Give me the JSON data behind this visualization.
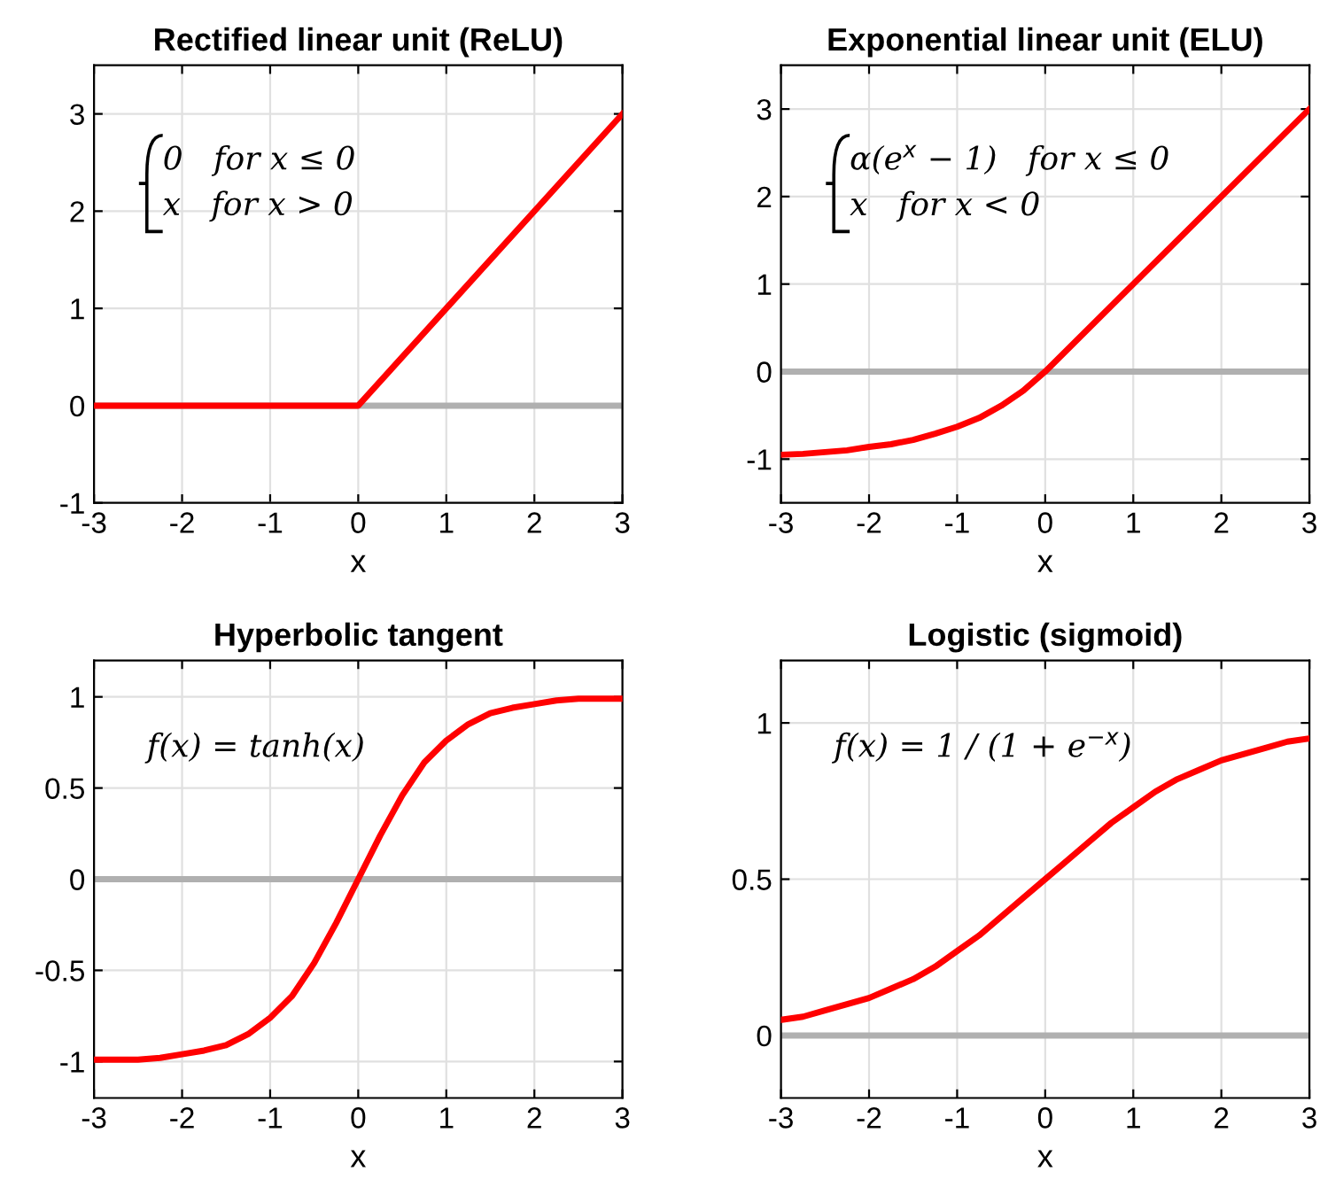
{
  "chart_data": [
    {
      "type": "line",
      "title": "Rectified linear unit (ReLU)",
      "xlabel": "x",
      "xlim": [
        -3,
        3
      ],
      "xticks": [
        -3,
        -2,
        -1,
        0,
        1,
        2,
        3
      ],
      "ylim": [
        -1,
        3.5
      ],
      "yticks": [
        -1,
        0,
        1,
        2,
        3
      ],
      "grid": true,
      "annotations": [
        "0   for x ≤ 0\nx   for x > 0"
      ],
      "ref_lines": [
        {
          "axis": "y",
          "value": 0,
          "color": "#b0b0b0"
        }
      ],
      "series": [
        {
          "color": "#ff0000",
          "x": [
            -3,
            0,
            3
          ],
          "values": [
            0,
            0,
            3
          ]
        }
      ]
    },
    {
      "type": "line",
      "title": "Exponential linear unit (ELU)",
      "xlabel": "x",
      "xlim": [
        -3,
        3
      ],
      "xticks": [
        -3,
        -2,
        -1,
        0,
        1,
        2,
        3
      ],
      "ylim": [
        -1.5,
        3.5
      ],
      "yticks": [
        -1,
        0,
        1,
        2,
        3
      ],
      "grid": true,
      "annotations": [
        "α(e$^{x}$ − 1)   for x ≤ 0\nx   for x < 0"
      ],
      "ref_lines": [
        {
          "axis": "y",
          "value": 0,
          "color": "#b0b0b0"
        }
      ],
      "series": [
        {
          "color": "#ff0000",
          "x": [
            -3,
            -2.75,
            -2.5,
            -2.25,
            -2,
            -1.75,
            -1.5,
            -1.25,
            -1,
            -0.75,
            -0.5,
            -0.25,
            0,
            3
          ],
          "values": [
            -0.95,
            -0.94,
            -0.92,
            -0.9,
            -0.86,
            -0.83,
            -0.78,
            -0.71,
            -0.63,
            -0.53,
            -0.39,
            -0.22,
            0,
            3
          ]
        }
      ]
    },
    {
      "type": "line",
      "title": "Hyperbolic tangent",
      "xlabel": "x",
      "xlim": [
        -3,
        3
      ],
      "xticks": [
        -3,
        -2,
        -1,
        0,
        1,
        2,
        3
      ],
      "ylim": [
        -1.2,
        1.2
      ],
      "yticks": [
        -1,
        -0.5,
        0,
        0.5,
        1
      ],
      "grid": true,
      "annotations": [
        "f(x) = tanh(x)"
      ],
      "ref_lines": [
        {
          "axis": "y",
          "value": 0,
          "color": "#b0b0b0"
        }
      ],
      "series": [
        {
          "color": "#ff0000",
          "x": [
            -3,
            -2.75,
            -2.5,
            -2.25,
            -2,
            -1.75,
            -1.5,
            -1.25,
            -1,
            -0.75,
            -0.5,
            -0.25,
            0,
            0.25,
            0.5,
            0.75,
            1,
            1.25,
            1.5,
            1.75,
            2,
            2.25,
            2.5,
            2.75,
            3
          ],
          "values": [
            -0.99,
            -0.99,
            -0.99,
            -0.98,
            -0.96,
            -0.94,
            -0.91,
            -0.85,
            -0.76,
            -0.64,
            -0.46,
            -0.24,
            0,
            0.24,
            0.46,
            0.64,
            0.76,
            0.85,
            0.91,
            0.94,
            0.96,
            0.98,
            0.99,
            0.99,
            0.99
          ]
        }
      ]
    },
    {
      "type": "line",
      "title": "Logistic (sigmoid)",
      "xlabel": "x",
      "xlim": [
        -3,
        3
      ],
      "xticks": [
        -3,
        -2,
        -1,
        0,
        1,
        2,
        3
      ],
      "ylim": [
        -0.2,
        1.2
      ],
      "yticks": [
        0,
        0.5,
        1
      ],
      "grid": true,
      "annotations": [
        "f(x) = 1 / (1 + e$^{−x}$)"
      ],
      "ref_lines": [
        {
          "axis": "y",
          "value": 0,
          "color": "#b0b0b0"
        }
      ],
      "series": [
        {
          "color": "#ff0000",
          "x": [
            -3,
            -2.75,
            -2.5,
            -2.25,
            -2,
            -1.75,
            -1.5,
            -1.25,
            -1,
            -0.75,
            -0.5,
            -0.25,
            0,
            0.25,
            0.5,
            0.75,
            1,
            1.25,
            1.5,
            1.75,
            2,
            2.25,
            2.5,
            2.75,
            3
          ],
          "values": [
            0.05,
            0.06,
            0.08,
            0.1,
            0.12,
            0.15,
            0.18,
            0.22,
            0.27,
            0.32,
            0.38,
            0.44,
            0.5,
            0.56,
            0.62,
            0.68,
            0.73,
            0.78,
            0.82,
            0.85,
            0.88,
            0.9,
            0.92,
            0.94,
            0.95
          ]
        }
      ]
    }
  ]
}
